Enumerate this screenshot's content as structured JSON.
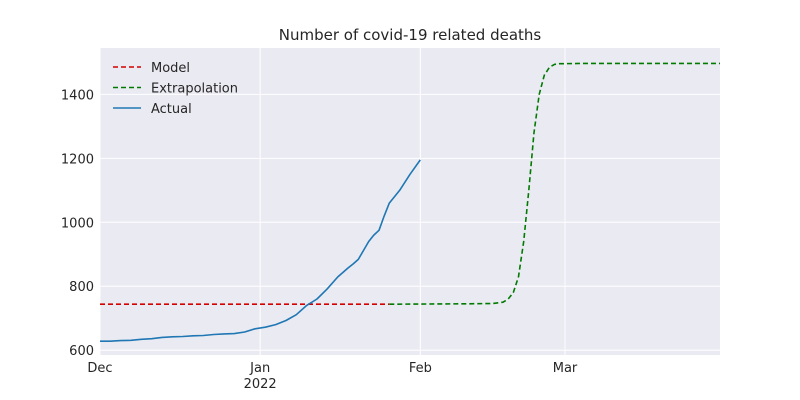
{
  "chart_data": {
    "type": "line",
    "title": "Number of covid-19 related deaths",
    "xlabel": "",
    "ylabel": "",
    "x_axis": {
      "type": "date",
      "range": [
        "2021-12-01",
        "2022-03-31"
      ],
      "ticks": [
        {
          "date": "2021-12-01",
          "label": "Dec",
          "sublabel": ""
        },
        {
          "date": "2022-01-01",
          "label": "Jan",
          "sublabel": "2022"
        },
        {
          "date": "2022-02-01",
          "label": "Feb",
          "sublabel": ""
        },
        {
          "date": "2022-03-01",
          "label": "Mar",
          "sublabel": ""
        }
      ]
    },
    "y_axis": {
      "range": [
        585,
        1545
      ],
      "ticks": [
        600,
        800,
        1000,
        1200,
        1400
      ]
    },
    "grid": true,
    "legend_position": "top-left",
    "series": [
      {
        "name": "Model",
        "color": "#d40000",
        "style": "dashed",
        "points": [
          [
            "2021-12-01",
            744
          ],
          [
            "2022-01-26",
            744
          ]
        ]
      },
      {
        "name": "Extrapolation",
        "color": "#007a00",
        "style": "dashed",
        "points": [
          [
            "2022-01-26",
            744
          ],
          [
            "2022-02-10",
            745
          ],
          [
            "2022-02-15",
            746
          ],
          [
            "2022-02-17",
            750
          ],
          [
            "2022-02-18",
            760
          ],
          [
            "2022-02-19",
            780
          ],
          [
            "2022-02-20",
            830
          ],
          [
            "2022-02-21",
            940
          ],
          [
            "2022-02-22",
            1100
          ],
          [
            "2022-02-23",
            1280
          ],
          [
            "2022-02-24",
            1400
          ],
          [
            "2022-02-25",
            1460
          ],
          [
            "2022-02-26",
            1485
          ],
          [
            "2022-02-27",
            1494
          ],
          [
            "2022-02-28",
            1496
          ],
          [
            "2022-03-05",
            1497
          ],
          [
            "2022-03-31",
            1497
          ]
        ]
      },
      {
        "name": "Actual",
        "color": "#1f77b4",
        "style": "solid",
        "points": [
          [
            "2021-12-01",
            628
          ],
          [
            "2021-12-03",
            628
          ],
          [
            "2021-12-05",
            630
          ],
          [
            "2021-12-07",
            631
          ],
          [
            "2021-12-09",
            634
          ],
          [
            "2021-12-11",
            636
          ],
          [
            "2021-12-13",
            640
          ],
          [
            "2021-12-15",
            642
          ],
          [
            "2021-12-17",
            643
          ],
          [
            "2021-12-19",
            645
          ],
          [
            "2021-12-21",
            646
          ],
          [
            "2021-12-23",
            649
          ],
          [
            "2021-12-25",
            651
          ],
          [
            "2021-12-27",
            652
          ],
          [
            "2021-12-29",
            657
          ],
          [
            "2021-12-31",
            667
          ],
          [
            "2022-01-02",
            672
          ],
          [
            "2022-01-04",
            680
          ],
          [
            "2022-01-06",
            693
          ],
          [
            "2022-01-08",
            711
          ],
          [
            "2022-01-10",
            740
          ],
          [
            "2022-01-12",
            760
          ],
          [
            "2022-01-14",
            792
          ],
          [
            "2022-01-16",
            829
          ],
          [
            "2022-01-18",
            857
          ],
          [
            "2022-01-19",
            870
          ],
          [
            "2022-01-20",
            884
          ],
          [
            "2022-01-22",
            940
          ],
          [
            "2022-01-23",
            960
          ],
          [
            "2022-01-24",
            975
          ],
          [
            "2022-01-25",
            1020
          ],
          [
            "2022-01-26",
            1060
          ],
          [
            "2022-01-28",
            1100
          ],
          [
            "2022-01-30",
            1150
          ],
          [
            "2022-02-01",
            1195
          ]
        ]
      }
    ]
  }
}
